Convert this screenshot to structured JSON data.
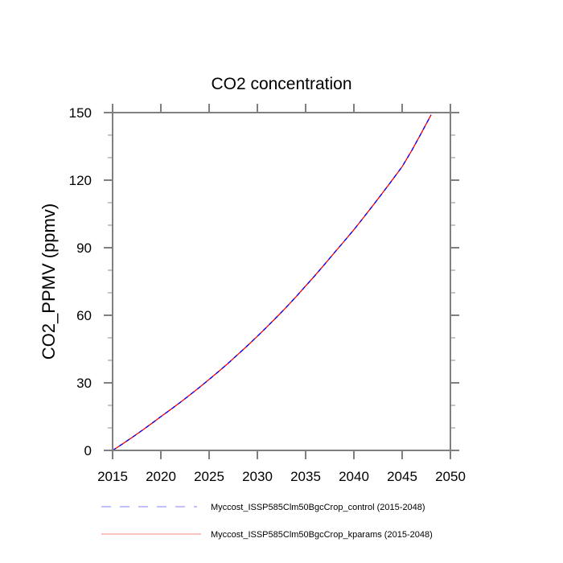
{
  "chart_data": {
    "type": "line",
    "title": "CO2 concentration",
    "xlabel": "",
    "ylabel": "CO2_PPMV  (ppmv)",
    "xlim": [
      2015,
      2050
    ],
    "ylim": [
      0,
      150
    ],
    "xticks": [
      2015,
      2020,
      2025,
      2030,
      2035,
      2040,
      2045,
      2050
    ],
    "xtick_labels": [
      "2015",
      "2020",
      "2025",
      "2030",
      "2035",
      "2040",
      "2045",
      "2050"
    ],
    "yticks": [
      0,
      30,
      60,
      90,
      120,
      150
    ],
    "ytick_labels": [
      "0",
      "30",
      "60",
      "90",
      "120",
      "150"
    ],
    "y_minor_step": 10,
    "grid": false,
    "legend_position": "bottom",
    "x": [
      2015,
      2016,
      2017,
      2018,
      2019,
      2020,
      2021,
      2022,
      2023,
      2024,
      2025,
      2026,
      2027,
      2028,
      2029,
      2030,
      2031,
      2032,
      2033,
      2034,
      2035,
      2036,
      2037,
      2038,
      2039,
      2040,
      2041,
      2042,
      2043,
      2044,
      2045,
      2046,
      2047,
      2048
    ],
    "series": [
      {
        "name": "Myccost_ISSP585Clm50BgcCrop_control (2015-2048)",
        "color": "#0000ff",
        "dash": "dashed",
        "values": [
          0,
          2.8,
          5.7,
          8.7,
          11.8,
          15.0,
          18.1,
          21.3,
          24.6,
          28.0,
          31.5,
          35.1,
          38.8,
          42.7,
          46.6,
          50.7,
          54.9,
          59.2,
          63.6,
          68.2,
          73.0,
          77.8,
          82.8,
          87.9,
          92.9,
          98.0,
          103.4,
          108.9,
          114.5,
          120.2,
          126.0,
          133.2,
          141.0,
          149.0
        ]
      },
      {
        "name": "Myccost_ISSP585Clm50BgcCrop_kparams (2015-2048)",
        "color": "#ff0000",
        "dash": "solid",
        "values": [
          0,
          2.8,
          5.7,
          8.7,
          11.8,
          15.0,
          18.1,
          21.3,
          24.6,
          28.0,
          31.5,
          35.1,
          38.8,
          42.7,
          46.6,
          50.7,
          54.9,
          59.2,
          63.6,
          68.2,
          73.0,
          77.8,
          82.8,
          87.9,
          92.9,
          98.0,
          103.4,
          108.9,
          114.5,
          120.2,
          126.0,
          133.2,
          141.0,
          149.0
        ]
      }
    ]
  },
  "legend": {
    "items": [
      {
        "label": "Myccost_ISSP585Clm50BgcCrop_control (2015-2048)",
        "color": "#8080ff",
        "dash": "dashed"
      },
      {
        "label": "Myccost_ISSP585Clm50BgcCrop_kparams (2015-2048)",
        "color": "#ff8080",
        "dash": "solid"
      }
    ]
  }
}
